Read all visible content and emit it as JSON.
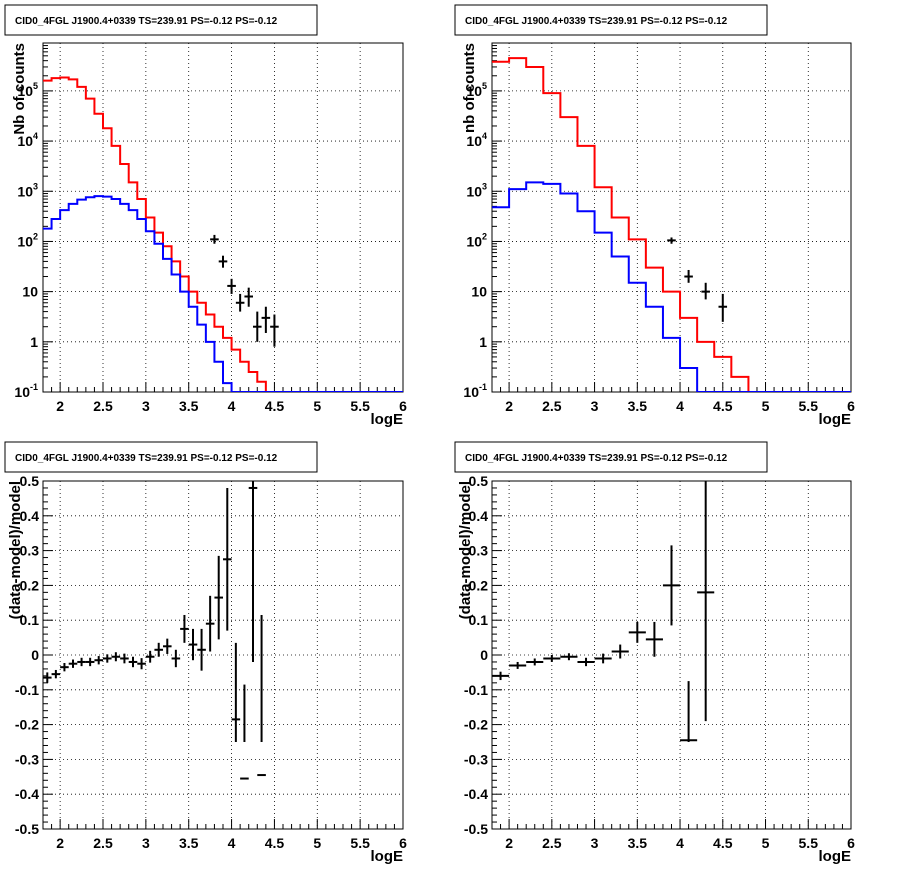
{
  "window": {
    "title": "CID0_4FGL J1900.4+0339 TS=239.91 PS=-0.12 PS=-0.12"
  },
  "chart_data": [
    {
      "type": "histogram-log",
      "title": "CID0_4FGL J1900.4+0339 TS=239.91 PS=-0.12 PS=-0.12",
      "xlabel": "logE",
      "ylabel": "Nb of counts",
      "xlim": [
        1.8,
        6.0
      ],
      "ylim": [
        0.1,
        900000
      ],
      "y_scale": "log",
      "grid": true,
      "xticks": [
        "2",
        "2.5",
        "3",
        "3.5",
        "4",
        "4.5",
        "5",
        "5.5",
        "6"
      ],
      "yticks": [
        {
          "value": 0.1,
          "base": "10",
          "exp": "-1"
        },
        {
          "value": 1,
          "base": "1",
          "exp": ""
        },
        {
          "value": 10,
          "base": "10",
          "exp": ""
        },
        {
          "value": 100,
          "base": "10",
          "exp": "2"
        },
        {
          "value": 1000,
          "base": "10",
          "exp": "3"
        },
        {
          "value": 10000,
          "base": "10",
          "exp": "4"
        },
        {
          "value": 100000,
          "base": "10",
          "exp": "5"
        }
      ],
      "bin_edges": [
        1.8,
        1.9,
        2.0,
        2.1,
        2.2,
        2.3,
        2.4,
        2.5,
        2.6,
        2.7,
        2.8,
        2.9,
        3.0,
        3.1,
        3.2,
        3.3,
        3.4,
        3.5,
        3.6,
        3.7,
        3.8,
        3.9,
        4.0,
        4.1,
        4.2,
        4.3,
        4.4,
        4.5,
        4.6,
        4.7,
        4.8,
        4.9,
        5.0,
        5.1,
        5.2,
        5.3,
        5.4,
        5.5,
        5.6,
        5.7,
        5.8,
        5.9,
        6.0
      ],
      "series": [
        {
          "color": "#ff0000",
          "values": [
            160000,
            180000,
            185000,
            170000,
            120000,
            70000,
            35000,
            18000,
            8000,
            3500,
            1500,
            700,
            300,
            150,
            80,
            40,
            20,
            10,
            6,
            3.5,
            2,
            1.2,
            0.7,
            0.4,
            0.25,
            0.16,
            0.1,
            0.1,
            0.1,
            0.1,
            0.1,
            0.1,
            0.1,
            0.1,
            0.1,
            0.1,
            0.1,
            0.1,
            0.1,
            0.1,
            0.1,
            0.1
          ]
        },
        {
          "color": "#0000ff",
          "values": [
            180,
            280,
            420,
            560,
            680,
            760,
            800,
            780,
            700,
            560,
            420,
            280,
            160,
            90,
            45,
            22,
            10,
            5,
            2.2,
            1,
            0.4,
            0.15,
            0.1,
            0.1,
            0.1,
            0.1,
            0.1,
            0.1,
            0.1,
            0.1,
            0.1,
            0.1,
            0.1,
            0.1,
            0.1,
            0.1,
            0.1,
            0.1,
            0.1,
            0.1,
            0.1,
            0.1
          ]
        }
      ],
      "points": [
        {
          "x": 3.8,
          "y": 110,
          "ylo": 90,
          "yhi": 135
        },
        {
          "x": 3.9,
          "y": 40,
          "ylo": 30,
          "yhi": 52
        },
        {
          "x": 4.0,
          "y": 13,
          "ylo": 9,
          "yhi": 18
        },
        {
          "x": 4.1,
          "y": 6,
          "ylo": 4,
          "yhi": 9
        },
        {
          "x": 4.2,
          "y": 8,
          "ylo": 5,
          "yhi": 12
        },
        {
          "x": 4.3,
          "y": 2,
          "ylo": 1,
          "yhi": 4
        },
        {
          "x": 4.4,
          "y": 3,
          "ylo": 1.5,
          "yhi": 5
        },
        {
          "x": 4.5,
          "y": 2,
          "ylo": 0.8,
          "yhi": 3.5
        }
      ]
    },
    {
      "type": "histogram-log",
      "title": "CID0_4FGL J1900.4+0339 TS=239.91 PS=-0.12 PS=-0.12",
      "xlabel": "logE",
      "ylabel": "nb of counts",
      "xlim": [
        1.8,
        6.0
      ],
      "ylim": [
        0.1,
        900000
      ],
      "y_scale": "log",
      "grid": true,
      "xticks": [
        "2",
        "2.5",
        "3",
        "3.5",
        "4",
        "4.5",
        "5",
        "5.5",
        "6"
      ],
      "yticks": [
        {
          "value": 0.1,
          "base": "10",
          "exp": "-1"
        },
        {
          "value": 1,
          "base": "1",
          "exp": ""
        },
        {
          "value": 10,
          "base": "10",
          "exp": ""
        },
        {
          "value": 100,
          "base": "10",
          "exp": "2"
        },
        {
          "value": 1000,
          "base": "10",
          "exp": "3"
        },
        {
          "value": 10000,
          "base": "10",
          "exp": "4"
        },
        {
          "value": 100000,
          "base": "10",
          "exp": "5"
        }
      ],
      "bin_edges": [
        1.8,
        2.0,
        2.2,
        2.4,
        2.6,
        2.8,
        3.0,
        3.2,
        3.4,
        3.6,
        3.8,
        4.0,
        4.2,
        4.4,
        4.6,
        4.8,
        5.0,
        5.2,
        5.4,
        5.6,
        5.8,
        6.0
      ],
      "series": [
        {
          "color": "#ff0000",
          "values": [
            380000,
            450000,
            300000,
            90000,
            30000,
            8000,
            1200,
            300,
            110,
            30,
            10,
            3,
            1,
            0.5,
            0.2,
            0.1,
            0.1,
            0.1,
            0.1,
            0.1,
            0.1
          ]
        },
        {
          "color": "#0000ff",
          "values": [
            480,
            1100,
            1500,
            1400,
            900,
            400,
            150,
            50,
            15,
            5,
            1.2,
            0.3,
            0.1,
            0.1,
            0.1,
            0.1,
            0.1,
            0.1,
            0.1,
            0.1,
            0.1
          ]
        }
      ],
      "points": [
        {
          "x": 3.9,
          "y": 105,
          "ylo": 90,
          "yhi": 120
        },
        {
          "x": 4.1,
          "y": 20,
          "ylo": 15,
          "yhi": 27
        },
        {
          "x": 4.3,
          "y": 10,
          "ylo": 7,
          "yhi": 15
        },
        {
          "x": 4.5,
          "y": 5,
          "ylo": 2.5,
          "yhi": 9
        }
      ]
    },
    {
      "type": "scatter-errorbar",
      "title": "CID0_4FGL J1900.4+0339 TS=239.91 PS=-0.12 PS=-0.12",
      "xlabel": "logE",
      "ylabel": "(data-model)/model",
      "xlim": [
        1.8,
        6.0
      ],
      "ylim": [
        -0.5,
        0.5
      ],
      "grid": true,
      "xticks": [
        "2",
        "2.5",
        "3",
        "3.5",
        "4",
        "4.5",
        "5",
        "5.5",
        "6"
      ],
      "yticks": [
        "-0.5",
        "-0.4",
        "-0.3",
        "-0.2",
        "-0.1",
        "0",
        "0.1",
        "0.2",
        "0.3",
        "0.4",
        "0.5"
      ],
      "xhalf": 0.05,
      "points": [
        {
          "x": 1.85,
          "y": -0.065,
          "err": 0.015
        },
        {
          "x": 1.95,
          "y": -0.055,
          "err": 0.012
        },
        {
          "x": 2.05,
          "y": -0.035,
          "err": 0.012
        },
        {
          "x": 2.15,
          "y": -0.025,
          "err": 0.012
        },
        {
          "x": 2.25,
          "y": -0.02,
          "err": 0.012
        },
        {
          "x": 2.35,
          "y": -0.02,
          "err": 0.012
        },
        {
          "x": 2.45,
          "y": -0.015,
          "err": 0.012
        },
        {
          "x": 2.55,
          "y": -0.01,
          "err": 0.012
        },
        {
          "x": 2.65,
          "y": -0.005,
          "err": 0.013
        },
        {
          "x": 2.75,
          "y": -0.01,
          "err": 0.014
        },
        {
          "x": 2.85,
          "y": -0.02,
          "err": 0.015
        },
        {
          "x": 2.95,
          "y": -0.025,
          "err": 0.016
        },
        {
          "x": 3.05,
          "y": -0.005,
          "err": 0.017
        },
        {
          "x": 3.15,
          "y": 0.015,
          "err": 0.02
        },
        {
          "x": 3.25,
          "y": 0.025,
          "err": 0.022
        },
        {
          "x": 3.35,
          "y": -0.01,
          "err": 0.025
        },
        {
          "x": 3.45,
          "y": 0.075,
          "err": 0.04
        },
        {
          "x": 3.55,
          "y": 0.03,
          "err": 0.045
        },
        {
          "x": 3.65,
          "y": 0.015,
          "err": 0.06
        },
        {
          "x": 3.75,
          "y": 0.09,
          "err": 0.08
        },
        {
          "x": 3.85,
          "y": 0.165,
          "err": 0.12
        },
        {
          "x": 3.95,
          "y": 0.275,
          "err": 0.205
        },
        {
          "x": 4.05,
          "y": -0.185,
          "err": 0.22
        },
        {
          "x": 4.15,
          "y": -0.355,
          "err": 0.27
        },
        {
          "x": 4.25,
          "y": 0.48,
          "err": 0.5
        },
        {
          "x": 4.35,
          "y": -0.345,
          "err": 0.46
        }
      ]
    },
    {
      "type": "scatter-errorbar",
      "title": "CID0_4FGL J1900.4+0339 TS=239.91 PS=-0.12 PS=-0.12",
      "xlabel": "logE",
      "ylabel": "(data-model)/model",
      "xlim": [
        1.8,
        6.0
      ],
      "ylim": [
        -0.5,
        0.5
      ],
      "grid": true,
      "xticks": [
        "2",
        "2.5",
        "3",
        "3.5",
        "4",
        "4.5",
        "5",
        "5.5",
        "6"
      ],
      "yticks": [
        "-0.5",
        "-0.4",
        "-0.3",
        "-0.2",
        "-0.1",
        "0",
        "0.1",
        "0.2",
        "0.3",
        "0.4",
        "0.5"
      ],
      "xhalf": 0.1,
      "points": [
        {
          "x": 1.9,
          "y": -0.06,
          "err": 0.012
        },
        {
          "x": 2.1,
          "y": -0.03,
          "err": 0.01
        },
        {
          "x": 2.3,
          "y": -0.02,
          "err": 0.01
        },
        {
          "x": 2.5,
          "y": -0.01,
          "err": 0.01
        },
        {
          "x": 2.7,
          "y": -0.005,
          "err": 0.01
        },
        {
          "x": 2.9,
          "y": -0.02,
          "err": 0.012
        },
        {
          "x": 3.1,
          "y": -0.01,
          "err": 0.014
        },
        {
          "x": 3.3,
          "y": 0.01,
          "err": 0.02
        },
        {
          "x": 3.5,
          "y": 0.065,
          "err": 0.03
        },
        {
          "x": 3.7,
          "y": 0.045,
          "err": 0.05
        },
        {
          "x": 3.9,
          "y": 0.2,
          "err": 0.115
        },
        {
          "x": 4.1,
          "y": -0.245,
          "err": 0.17
        },
        {
          "x": 4.3,
          "y": 0.18,
          "err": 0.37
        }
      ]
    }
  ]
}
